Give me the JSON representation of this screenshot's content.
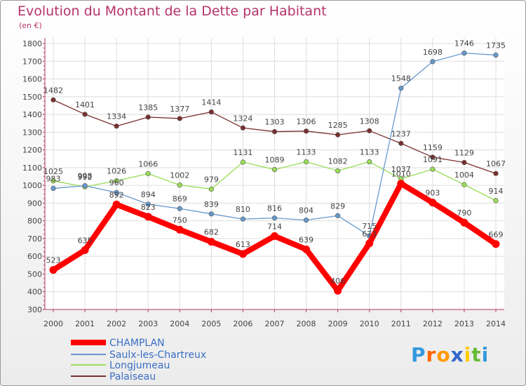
{
  "chart_data": {
    "type": "line",
    "title": "Evolution du Montant de la Dette par Habitant",
    "subtitle": "(en €)",
    "x": [
      "2000",
      "2001",
      "2002",
      "2003",
      "2004",
      "2005",
      "2006",
      "2007",
      "2008",
      "2009",
      "2010",
      "2011",
      "2012",
      "2013",
      "2014"
    ],
    "yticks": [
      300,
      400,
      500,
      600,
      700,
      800,
      900,
      1000,
      1100,
      1200,
      1300,
      1400,
      1500,
      1600,
      1700,
      1800
    ],
    "ylim": [
      300,
      1800
    ],
    "grid": true,
    "legend_position": "bottom-left",
    "series": [
      {
        "name": "CHAMPLAN",
        "color": "#ff0000",
        "values": [
          523,
          635,
          892,
          823,
          750,
          682,
          613,
          714,
          639,
          406,
          673,
          1010,
          903,
          790,
          669
        ],
        "labels": [
          "523",
          "635",
          "892",
          "823",
          "750",
          "682",
          "613",
          "714",
          "639",
          "406",
          "673",
          "1010",
          "903",
          "790",
          "669"
        ]
      },
      {
        "name": "Saulx-les-Chartreux",
        "color": "#6699cc",
        "values": [
          983,
          998,
          960,
          894,
          869,
          839,
          810,
          816,
          804,
          829,
          715,
          1548,
          1698,
          1746,
          1735
        ],
        "labels": [
          "983",
          "998",
          "960",
          "894",
          "869",
          "839",
          "810",
          "816",
          "804",
          "829",
          "715",
          "1548",
          "1698",
          "1746",
          "1735"
        ]
      },
      {
        "name": "Longjumeau",
        "color": "#99dd55",
        "values": [
          1025,
          992,
          1026,
          1066,
          1002,
          979,
          1131,
          1089,
          1133,
          1082,
          1133,
          1037,
          1091,
          1004,
          914
        ],
        "labels": [
          "1025",
          "992",
          "1026",
          "1066",
          "1002",
          "979",
          "1131",
          "1089",
          "1133",
          "1082",
          "1133",
          "1037",
          "1091",
          "1004",
          "914"
        ]
      },
      {
        "name": "Palaiseau",
        "color": "#7a2e2e",
        "values": [
          1482,
          1401,
          1334,
          1385,
          1377,
          1414,
          1324,
          1303,
          1306,
          1285,
          1308,
          1237,
          1159,
          1129,
          1067
        ],
        "labels": [
          "1482",
          "1401",
          "1334",
          "1385",
          "1377",
          "1414",
          "1324",
          "1303",
          "1306",
          "1285",
          "1308",
          "1237",
          "1159",
          "1129",
          "1067"
        ]
      }
    ]
  },
  "logo": {
    "letters": [
      "P",
      "r",
      "o",
      "x",
      "i",
      "t",
      "i"
    ],
    "colors": [
      "#3399dd",
      "#ff6600",
      "#ff9900",
      "#3366cc",
      "#ffcc00",
      "#66bb33",
      "#3399dd"
    ]
  }
}
